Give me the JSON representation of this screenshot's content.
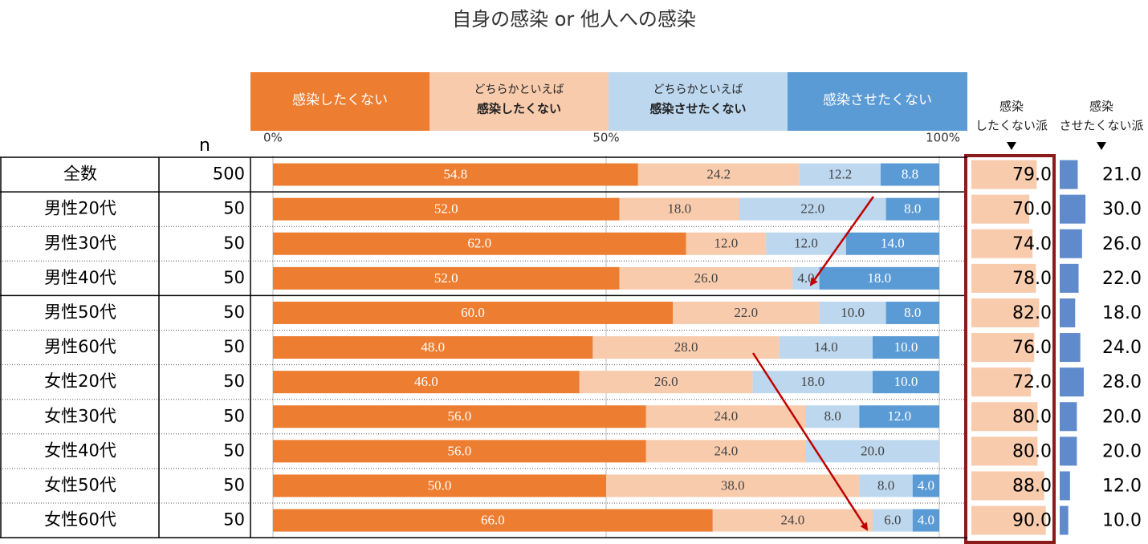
{
  "chart_data": {
    "type": "stacked_bar_table",
    "title": "自身の感染 or 他人への感染",
    "n_header": "n",
    "xlim": [
      0,
      100
    ],
    "xticks": [
      {
        "value": 0,
        "label": "0%"
      },
      {
        "value": 50,
        "label": "50%"
      },
      {
        "value": 100,
        "label": "100%"
      }
    ],
    "grid": true,
    "categories": [
      "全数",
      "男性20代",
      "男性30代",
      "男性40代",
      "男性50代",
      "男性60代",
      "女性20代",
      "女性30代",
      "女性40代",
      "女性50代",
      "女性60代"
    ],
    "n": [
      500,
      50,
      50,
      50,
      50,
      50,
      50,
      50,
      50,
      50,
      50
    ],
    "series": [
      {
        "name": [
          "感染したくない"
        ],
        "color": "#ED7D31",
        "values": [
          54.8,
          52,
          62,
          52,
          60,
          48,
          46,
          56,
          56,
          50,
          66
        ],
        "value_labels": [
          "54.8",
          "52.0",
          "62.0",
          "52.0",
          "60.0",
          "48.0",
          "46.0",
          "56.0",
          "56.0",
          "50.0",
          "66.0"
        ]
      },
      {
        "name": [
          "どちらかといえば",
          "感染したくない"
        ],
        "color": "#F8CBAD",
        "values": [
          24.2,
          18,
          12,
          26,
          22,
          28,
          26,
          24,
          24,
          38,
          24
        ],
        "value_labels": [
          "24.2",
          "18.0",
          "12.0",
          "26.0",
          "22.0",
          "28.0",
          "26.0",
          "24.0",
          "24.0",
          "38.0",
          "24.0"
        ]
      },
      {
        "name": [
          "どちらかといえば",
          "感染させたくない"
        ],
        "color": "#BDD7EE",
        "values": [
          12.2,
          22,
          12,
          4,
          10,
          14,
          18,
          8,
          20,
          8,
          6
        ],
        "value_labels": [
          "12.2",
          "22.0",
          "12.0",
          "4.0",
          "10.0",
          "14.0",
          "18.0",
          "8.0",
          "20.0",
          "8.0",
          "6.0"
        ]
      },
      {
        "name": [
          "感染させたくない"
        ],
        "color": "#5B9BD5",
        "values": [
          8.8,
          8,
          14,
          18,
          8,
          10,
          10,
          12,
          null,
          4,
          4
        ],
        "value_labels": [
          "8.8",
          "8.0",
          "14.0",
          "18.0",
          "8.0",
          "10.0",
          "10.0",
          "12.0",
          null,
          "4.0",
          "4.0"
        ]
      }
    ],
    "summary_columns": [
      {
        "name": [
          "感染",
          "したくない派"
        ],
        "color": "#F8CBAD",
        "values": [
          79,
          70,
          74,
          78,
          82,
          76,
          72,
          80,
          80,
          88,
          90
        ],
        "value_labels": [
          "79.0",
          "70.0",
          "74.0",
          "78.0",
          "82.0",
          "76.0",
          "72.0",
          "80.0",
          "80.0",
          "88.0",
          "90.0"
        ]
      },
      {
        "name": [
          "感染",
          "させたくない派"
        ],
        "color": "#5F8ACB",
        "values": [
          21,
          30,
          26,
          22,
          18,
          24,
          28,
          20,
          20,
          12,
          10
        ],
        "value_labels": [
          "21.0",
          "30.0",
          "26.0",
          "22.0",
          "18.0",
          "24.0",
          "28.0",
          "20.0",
          "20.0",
          "12.0",
          "10.0"
        ]
      }
    ]
  }
}
